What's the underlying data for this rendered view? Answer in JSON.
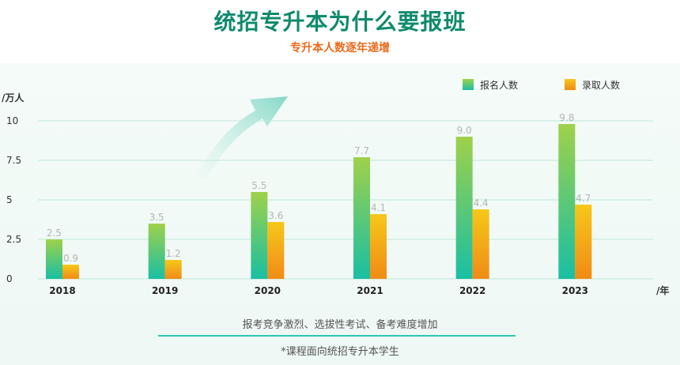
{
  "header": {
    "title": "统招专升本为什么要报班",
    "subtitle": "专升本人数逐年递增"
  },
  "footer": {
    "note": "报考竞争激烈、选拔性考试、备考难度增加",
    "disclaimer": "*课程面向统招专升本学生"
  },
  "chart_data": {
    "type": "bar",
    "title": "",
    "xlabel": "/年",
    "ylabel": "/万人",
    "categories": [
      "2018",
      "2019",
      "2020",
      "2021",
      "2022",
      "2023"
    ],
    "series": [
      {
        "name": "报名人数",
        "values": [
          2.5,
          3.5,
          5.5,
          7.7,
          9.0,
          9.8
        ],
        "value_labels": [
          "2.5",
          "3.5",
          "5.5",
          "7.7",
          "9.0",
          "9.8"
        ]
      },
      {
        "name": "录取人数",
        "values": [
          0.9,
          1.2,
          3.6,
          4.1,
          4.4,
          4.7
        ],
        "value_labels": [
          "0.9",
          "1.2",
          "3.6",
          "4.1",
          "4.4",
          "4.7"
        ]
      }
    ],
    "yticks": [
      "0",
      "2.5",
      "5",
      "7.5",
      "10"
    ],
    "ytick_values": [
      0,
      2.5,
      5,
      7.5,
      10
    ],
    "ylim": [
      0,
      10
    ],
    "grid": true,
    "legend": "top-right",
    "colors": {
      "registered_top": "#9fd14a",
      "registered_bottom": "#19bfa3",
      "admitted_top": "#f6c81a",
      "admitted_bottom": "#f08b16",
      "grid": "#bfe8dc",
      "arrow": "#9fe0d2"
    }
  }
}
